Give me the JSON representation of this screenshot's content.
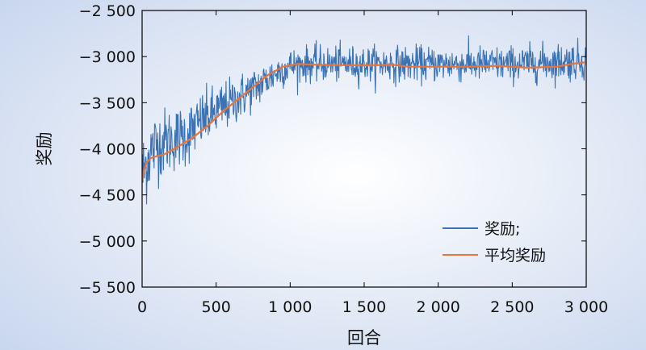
{
  "colors": {
    "reward": "#3A72B3",
    "avg_reward": "#E8743B",
    "bg_center": "#FFFFFF",
    "bg_edge": "#C8D6EE",
    "axis": "#000000"
  },
  "chart_data": {
    "type": "line",
    "title": "",
    "xlabel": "回合",
    "ylabel": "奖励",
    "xlim": [
      0,
      3000
    ],
    "ylim": [
      -5500,
      -2500
    ],
    "xticks": [
      0,
      500,
      1000,
      1500,
      2000,
      2500,
      3000
    ],
    "xtick_labels": [
      "0",
      "500",
      "1 000",
      "1 500",
      "2 000",
      "2 500",
      "3 000"
    ],
    "yticks": [
      -2500,
      -3000,
      -3500,
      -4000,
      -4500,
      -5000,
      -5500
    ],
    "ytick_labels": [
      "−2 500",
      "−3 000",
      "−3 500",
      "−4 000",
      "−4 500",
      "−5 000",
      "−5 500"
    ],
    "grid": false,
    "legend_position": "lower-right",
    "series": [
      {
        "name": "奖励;",
        "color": "#3A72B3",
        "style": "noisy",
        "x": [
          0,
          50,
          100,
          200,
          300,
          400,
          500,
          600,
          700,
          800,
          900,
          1000,
          1100,
          1200,
          1500,
          1800,
          2000,
          2500,
          2800,
          3000
        ],
        "values": [
          -4300,
          -4050,
          -3950,
          -3900,
          -3850,
          -3700,
          -3600,
          -3500,
          -3400,
          -3300,
          -3180,
          -3100,
          -3080,
          -3080,
          -3080,
          -3080,
          -3080,
          -3080,
          -3060,
          -3040
        ],
        "noise_std": [
          420,
          380,
          340,
          320,
          300,
          280,
          260,
          240,
          220,
          200,
          180,
          170,
          170,
          170,
          170,
          170,
          170,
          170,
          180,
          190
        ]
      },
      {
        "name": "平均奖励",
        "color": "#E8743B",
        "style": "smooth",
        "x": [
          0,
          10,
          30,
          60,
          100,
          150,
          250,
          350,
          450,
          550,
          650,
          750,
          850,
          950,
          1050,
          1200,
          1500,
          1700,
          1800,
          2000,
          2200,
          2400,
          2600,
          2800,
          2900,
          3000
        ],
        "values": [
          -4350,
          -4250,
          -4150,
          -4100,
          -4080,
          -4060,
          -3970,
          -3870,
          -3740,
          -3590,
          -3460,
          -3330,
          -3200,
          -3110,
          -3080,
          -3090,
          -3095,
          -3090,
          -3110,
          -3110,
          -3110,
          -3100,
          -3120,
          -3110,
          -3080,
          -3060
        ]
      }
    ]
  }
}
